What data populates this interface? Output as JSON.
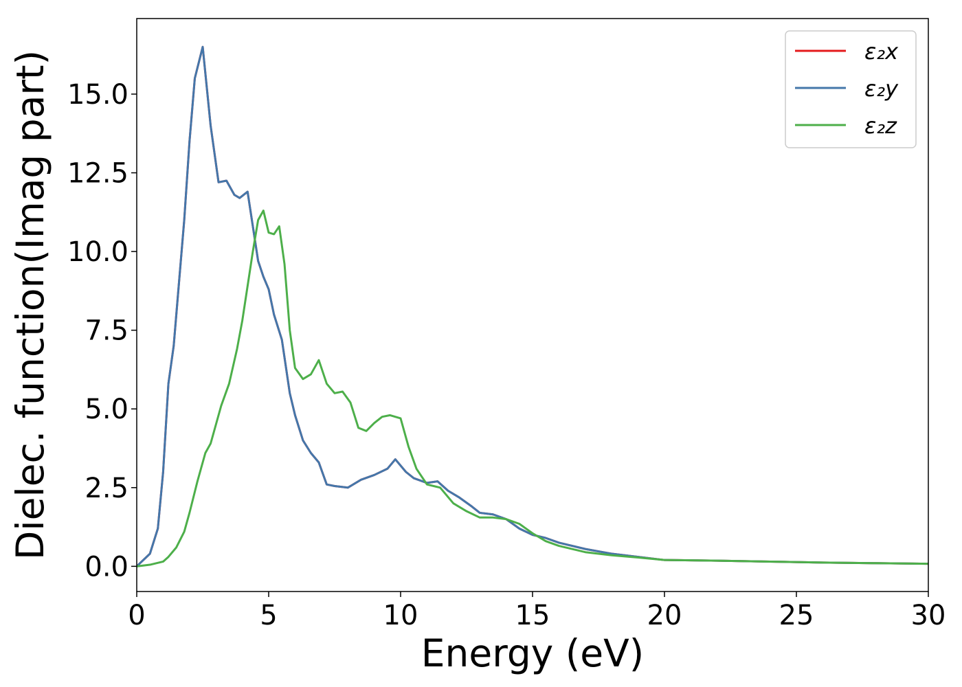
{
  "chart_data": {
    "type": "line",
    "xlabel": "Energy (eV)",
    "ylabel": "Dielec. function(Imag part)",
    "xlim": [
      0,
      30
    ],
    "ylim": [
      -0.8,
      17.4
    ],
    "xticks": [
      0,
      5,
      10,
      15,
      20,
      25,
      30
    ],
    "xtick_labels": [
      "0",
      "5",
      "10",
      "15",
      "20",
      "25",
      "30"
    ],
    "yticks": [
      0.0,
      2.5,
      5.0,
      7.5,
      10.0,
      12.5,
      15.0
    ],
    "ytick_labels": [
      "0.0",
      "2.5",
      "5.0",
      "7.5",
      "10.0",
      "12.5",
      "15.0"
    ],
    "grid": false,
    "legend_position": "top-right",
    "series": [
      {
        "name": "ε2x",
        "legend_label": "ε₂x",
        "color": "#e41a1c",
        "x": [
          0,
          0.5,
          0.8,
          1.0,
          1.2,
          1.4,
          1.6,
          1.8,
          2.0,
          2.2,
          2.5,
          2.8,
          3.1,
          3.4,
          3.7,
          3.9,
          4.2,
          4.4,
          4.6,
          4.8,
          5.0,
          5.2,
          5.5,
          5.8,
          6.0,
          6.3,
          6.6,
          6.9,
          7.2,
          7.5,
          8.0,
          8.5,
          9.0,
          9.5,
          9.8,
          10.2,
          10.5,
          11.0,
          11.4,
          11.8,
          12.2,
          12.7,
          13.0,
          13.5,
          14.0,
          14.5,
          15.0,
          15.5,
          16.0,
          17.0,
          18.0,
          19.0,
          20.0,
          22.0,
          24.0,
          26.0,
          28.0,
          30.0
        ],
        "y": [
          0.0,
          0.4,
          1.2,
          3.0,
          5.8,
          7.0,
          9.0,
          11.0,
          13.5,
          15.5,
          16.5,
          14.0,
          12.2,
          12.25,
          11.8,
          11.7,
          11.9,
          10.8,
          9.7,
          9.2,
          8.8,
          8.0,
          7.2,
          5.5,
          4.8,
          4.0,
          3.6,
          3.3,
          2.6,
          2.55,
          2.5,
          2.75,
          2.9,
          3.1,
          3.4,
          3.0,
          2.8,
          2.65,
          2.7,
          2.4,
          2.2,
          1.9,
          1.7,
          1.65,
          1.5,
          1.2,
          1.0,
          0.9,
          0.75,
          0.55,
          0.4,
          0.3,
          0.2,
          0.18,
          0.15,
          0.12,
          0.1,
          0.08
        ]
      },
      {
        "name": "ε2y",
        "legend_label": "ε₂y",
        "color": "#4477aa",
        "x": [
          0,
          0.5,
          0.8,
          1.0,
          1.2,
          1.4,
          1.6,
          1.8,
          2.0,
          2.2,
          2.5,
          2.8,
          3.1,
          3.4,
          3.7,
          3.9,
          4.2,
          4.4,
          4.6,
          4.8,
          5.0,
          5.2,
          5.5,
          5.8,
          6.0,
          6.3,
          6.6,
          6.9,
          7.2,
          7.5,
          8.0,
          8.5,
          9.0,
          9.5,
          9.8,
          10.2,
          10.5,
          11.0,
          11.4,
          11.8,
          12.2,
          12.7,
          13.0,
          13.5,
          14.0,
          14.5,
          15.0,
          15.5,
          16.0,
          17.0,
          18.0,
          19.0,
          20.0,
          22.0,
          24.0,
          26.0,
          28.0,
          30.0
        ],
        "y": [
          0.0,
          0.4,
          1.2,
          3.0,
          5.8,
          7.0,
          9.0,
          11.0,
          13.5,
          15.5,
          16.5,
          14.0,
          12.2,
          12.25,
          11.8,
          11.7,
          11.9,
          10.8,
          9.7,
          9.2,
          8.8,
          8.0,
          7.2,
          5.5,
          4.8,
          4.0,
          3.6,
          3.3,
          2.6,
          2.55,
          2.5,
          2.75,
          2.9,
          3.1,
          3.4,
          3.0,
          2.8,
          2.65,
          2.7,
          2.4,
          2.2,
          1.9,
          1.7,
          1.65,
          1.5,
          1.2,
          1.0,
          0.9,
          0.75,
          0.55,
          0.4,
          0.3,
          0.2,
          0.18,
          0.15,
          0.12,
          0.1,
          0.08
        ]
      },
      {
        "name": "ε2z",
        "legend_label": "ε₂z",
        "color": "#4daf4a",
        "x": [
          0,
          0.5,
          1.0,
          1.2,
          1.5,
          1.8,
          2.0,
          2.3,
          2.6,
          2.8,
          3.0,
          3.2,
          3.5,
          3.8,
          4.0,
          4.2,
          4.4,
          4.6,
          4.8,
          5.0,
          5.2,
          5.4,
          5.6,
          5.8,
          6.0,
          6.3,
          6.6,
          6.9,
          7.2,
          7.5,
          7.8,
          8.1,
          8.4,
          8.7,
          9.0,
          9.3,
          9.6,
          10.0,
          10.3,
          10.6,
          11.0,
          11.5,
          12.0,
          12.5,
          13.0,
          13.5,
          14.0,
          14.5,
          15.0,
          15.5,
          16.0,
          17.0,
          18.0,
          19.0,
          20.0,
          22.0,
          24.0,
          26.0,
          28.0,
          30.0
        ],
        "y": [
          0.0,
          0.05,
          0.15,
          0.3,
          0.6,
          1.1,
          1.7,
          2.7,
          3.6,
          3.9,
          4.5,
          5.1,
          5.8,
          6.9,
          7.8,
          8.9,
          10.0,
          11.0,
          11.3,
          10.6,
          10.55,
          10.8,
          9.6,
          7.5,
          6.3,
          5.95,
          6.1,
          6.55,
          5.8,
          5.5,
          5.55,
          5.2,
          4.4,
          4.3,
          4.55,
          4.75,
          4.8,
          4.7,
          3.8,
          3.1,
          2.6,
          2.5,
          2.0,
          1.75,
          1.55,
          1.55,
          1.5,
          1.35,
          1.05,
          0.8,
          0.65,
          0.45,
          0.35,
          0.28,
          0.2,
          0.18,
          0.15,
          0.12,
          0.1,
          0.08
        ]
      }
    ]
  }
}
